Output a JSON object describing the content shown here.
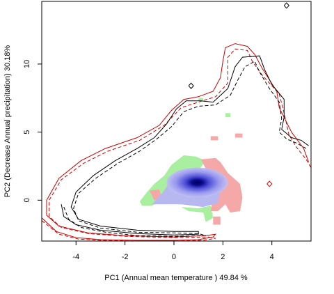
{
  "chart_data": {
    "type": "heatmap",
    "title": "",
    "xlabel": "PC1 (Annual mean temperature ) 49.84 %",
    "ylabel": "PC2 (Decrease Annual precipitation) 30.18%",
    "xlim": [
      -5.4,
      5.6
    ],
    "ylim": [
      -3.0,
      14.6
    ],
    "x_ticks": [
      -4,
      -2,
      0,
      2,
      4
    ],
    "y_ticks": [
      0,
      5,
      10
    ],
    "legend": "none",
    "grid": false,
    "colors": {
      "overlap_green": "#a8f0a0",
      "overlap_pink": "#f5a8a8",
      "density_blue": "#000060",
      "density_light": "#b8b8f0",
      "contour_red": "#cc0000",
      "contour_black": "#000000"
    },
    "overlap_regions": [
      {
        "fill": "green",
        "points": [
          [
            -1.4,
            -0.1
          ],
          [
            -1.1,
            0.6
          ],
          [
            -0.8,
            1.2
          ],
          [
            -0.4,
            1.8
          ],
          [
            -0.1,
            2.6
          ],
          [
            0.4,
            3.3
          ],
          [
            0.9,
            3.2
          ],
          [
            1.3,
            2.9
          ],
          [
            1.0,
            2.2
          ],
          [
            0.2,
            1.7
          ],
          [
            -0.3,
            0.8
          ],
          [
            -0.6,
            -0.1
          ],
          [
            -0.9,
            -0.4
          ],
          [
            -1.3,
            -0.4
          ]
        ]
      },
      {
        "fill": "green",
        "points": [
          [
            0.3,
            -0.5
          ],
          [
            1.0,
            -0.6
          ],
          [
            1.5,
            -0.4
          ],
          [
            1.6,
            -1.3
          ],
          [
            1.3,
            -1.6
          ],
          [
            1.2,
            -0.9
          ],
          [
            0.6,
            -0.8
          ]
        ]
      },
      {
        "fill": "green",
        "points": [
          [
            2.1,
            6.4
          ],
          [
            2.3,
            6.4
          ],
          [
            2.3,
            6.1
          ],
          [
            2.1,
            6.1
          ]
        ]
      },
      {
        "fill": "green",
        "points": [
          [
            1.0,
            7.5
          ],
          [
            1.2,
            7.5
          ],
          [
            1.2,
            7.3
          ],
          [
            1.0,
            7.3
          ]
        ]
      },
      {
        "fill": "pink",
        "points": [
          [
            1.1,
            3.0
          ],
          [
            1.7,
            3.1
          ],
          [
            1.9,
            2.8
          ],
          [
            2.2,
            2.0
          ],
          [
            2.7,
            1.2
          ],
          [
            2.8,
            0.2
          ],
          [
            2.7,
            -0.8
          ],
          [
            2.3,
            -0.9
          ],
          [
            2.1,
            -0.3
          ],
          [
            1.8,
            -0.8
          ],
          [
            1.5,
            -0.8
          ],
          [
            1.6,
            0.5
          ],
          [
            1.7,
            1.6
          ],
          [
            1.3,
            2.3
          ]
        ]
      },
      {
        "fill": "pink",
        "points": [
          [
            -1.0,
            0.7
          ],
          [
            -0.6,
            0.8
          ],
          [
            -0.5,
            0.1
          ],
          [
            -0.8,
            0.0
          ]
        ]
      },
      {
        "fill": "pink",
        "points": [
          [
            1.6,
            -1.2
          ],
          [
            1.9,
            -1.2
          ],
          [
            1.9,
            -1.8
          ],
          [
            1.6,
            -1.8
          ]
        ]
      },
      {
        "fill": "pink",
        "points": [
          [
            1.5,
            4.7
          ],
          [
            1.8,
            4.7
          ],
          [
            1.8,
            4.4
          ],
          [
            1.5,
            4.4
          ]
        ]
      },
      {
        "fill": "pink",
        "points": [
          [
            2.5,
            4.9
          ],
          [
            2.8,
            4.9
          ],
          [
            2.8,
            4.6
          ],
          [
            2.5,
            4.6
          ]
        ]
      }
    ],
    "density_blob": {
      "center": [
        0.95,
        1.3
      ],
      "radius_x": 1.25,
      "radius_y": 1.1,
      "outline": [
        [
          -0.9,
          -0.3
        ],
        [
          -0.4,
          0.7
        ],
        [
          0.0,
          1.9
        ],
        [
          0.9,
          2.4
        ],
        [
          1.6,
          1.9
        ],
        [
          1.9,
          0.9
        ],
        [
          1.8,
          -0.2
        ],
        [
          1.2,
          -0.5
        ],
        [
          0.3,
          -0.3
        ]
      ]
    },
    "series": [
      {
        "style": "solid",
        "color": "red",
        "points": [
          [
            -5.4,
            -1.3
          ],
          [
            -4.8,
            -2.3
          ],
          [
            -4.0,
            -2.75
          ],
          [
            -3.0,
            -2.9
          ],
          [
            -1.5,
            -2.95
          ],
          [
            0.0,
            -2.95
          ],
          [
            1.0,
            -2.9
          ],
          [
            1.6,
            -2.7
          ],
          [
            1.7,
            -2.5
          ],
          [
            1.3,
            -2.6
          ],
          [
            0.0,
            -2.7
          ],
          [
            -2.0,
            -2.6
          ],
          [
            -3.5,
            -2.4
          ],
          [
            -4.7,
            -1.9
          ],
          [
            -5.2,
            -1.1
          ],
          [
            -5.2,
            0.0
          ],
          [
            -4.7,
            1.6
          ],
          [
            -3.8,
            2.9
          ],
          [
            -2.8,
            3.8
          ],
          [
            -1.5,
            4.6
          ],
          [
            -0.6,
            5.5
          ],
          [
            -0.1,
            6.6
          ],
          [
            0.4,
            7.4
          ],
          [
            1.0,
            7.6
          ],
          [
            1.6,
            8.0
          ],
          [
            1.9,
            9.0
          ],
          [
            2.0,
            10.2
          ],
          [
            2.1,
            11.2
          ],
          [
            2.5,
            11.5
          ],
          [
            3.0,
            11.3
          ],
          [
            3.3,
            10.7
          ],
          [
            3.6,
            9.7
          ],
          [
            4.2,
            8.0
          ],
          [
            4.3,
            6.8
          ],
          [
            4.8,
            5.0
          ],
          [
            5.3,
            3.8
          ],
          [
            5.5,
            2.8
          ]
        ]
      },
      {
        "style": "dashed",
        "color": "red",
        "points": [
          [
            -5.4,
            -1.5
          ],
          [
            -4.7,
            -2.5
          ],
          [
            -3.9,
            -2.85
          ],
          [
            -3.0,
            -2.95
          ],
          [
            -1.5,
            -3.0
          ],
          [
            0.0,
            -3.0
          ],
          [
            1.2,
            -2.95
          ],
          [
            1.7,
            -2.8
          ],
          [
            1.4,
            -2.7
          ],
          [
            0.0,
            -2.75
          ],
          [
            -2.0,
            -2.65
          ],
          [
            -3.5,
            -2.45
          ],
          [
            -4.6,
            -2.0
          ],
          [
            -5.1,
            -1.2
          ],
          [
            -5.1,
            0.0
          ],
          [
            -4.6,
            1.5
          ],
          [
            -3.7,
            2.7
          ],
          [
            -2.7,
            3.6
          ],
          [
            -1.4,
            4.4
          ],
          [
            -0.4,
            5.5
          ],
          [
            0.3,
            6.8
          ],
          [
            1.0,
            7.2
          ],
          [
            1.7,
            7.6
          ],
          [
            2.2,
            8.6
          ],
          [
            2.2,
            10.5
          ],
          [
            2.5,
            11.1
          ],
          [
            3.0,
            11.0
          ],
          [
            3.2,
            10.2
          ],
          [
            3.6,
            9.2
          ],
          [
            4.3,
            7.8
          ],
          [
            4.5,
            6.4
          ],
          [
            4.7,
            4.8
          ],
          [
            5.0,
            3.9
          ],
          [
            5.4,
            3.0
          ],
          [
            5.6,
            2.4
          ]
        ]
      },
      {
        "style": "solid",
        "color": "black",
        "points": [
          [
            -4.6,
            -0.3
          ],
          [
            -4.5,
            -1.2
          ],
          [
            -4.0,
            -1.8
          ],
          [
            -3.0,
            -2.2
          ],
          [
            -1.5,
            -2.45
          ],
          [
            0.0,
            -2.55
          ],
          [
            1.0,
            -2.5
          ],
          [
            1.0,
            -2.3
          ],
          [
            0.0,
            -2.3
          ],
          [
            -1.5,
            -2.2
          ],
          [
            -3.0,
            -1.9
          ],
          [
            -3.9,
            -1.4
          ],
          [
            -4.2,
            -0.5
          ],
          [
            -4.0,
            0.6
          ],
          [
            -3.3,
            1.8
          ],
          [
            -2.4,
            2.9
          ],
          [
            -1.5,
            3.8
          ],
          [
            -0.8,
            4.6
          ],
          [
            -0.3,
            5.6
          ],
          [
            0.1,
            6.7
          ],
          [
            0.5,
            7.3
          ],
          [
            1.1,
            7.3
          ],
          [
            1.6,
            7.2
          ],
          [
            2.2,
            8.2
          ],
          [
            2.5,
            9.8
          ],
          [
            2.8,
            10.5
          ],
          [
            3.5,
            10.6
          ],
          [
            3.7,
            9.6
          ],
          [
            4.0,
            8.5
          ],
          [
            4.5,
            7.4
          ],
          [
            4.5,
            6.1
          ],
          [
            4.4,
            5.2
          ],
          [
            4.8,
            4.6
          ],
          [
            5.2,
            4.4
          ],
          [
            5.5,
            4.0
          ]
        ]
      },
      {
        "style": "dashed",
        "color": "black",
        "points": [
          [
            -4.5,
            -0.5
          ],
          [
            -4.3,
            -1.4
          ],
          [
            -3.8,
            -2.0
          ],
          [
            -2.8,
            -2.35
          ],
          [
            -1.5,
            -2.6
          ],
          [
            0.0,
            -2.65
          ],
          [
            1.3,
            -2.6
          ],
          [
            1.0,
            -2.45
          ],
          [
            0.0,
            -2.4
          ],
          [
            -1.5,
            -2.35
          ],
          [
            -3.0,
            -2.05
          ],
          [
            -3.9,
            -1.5
          ],
          [
            -4.1,
            -0.6
          ],
          [
            -3.9,
            0.5
          ],
          [
            -3.2,
            1.6
          ],
          [
            -2.3,
            2.7
          ],
          [
            -1.4,
            3.6
          ],
          [
            -0.7,
            4.5
          ],
          [
            -0.1,
            5.4
          ],
          [
            0.4,
            6.5
          ],
          [
            1.0,
            6.9
          ],
          [
            1.7,
            7.0
          ],
          [
            2.3,
            7.7
          ],
          [
            2.6,
            8.8
          ],
          [
            2.9,
            9.8
          ],
          [
            3.3,
            10.2
          ],
          [
            3.5,
            9.4
          ],
          [
            3.9,
            8.2
          ],
          [
            4.3,
            7.2
          ],
          [
            4.4,
            6.0
          ],
          [
            4.3,
            5.0
          ],
          [
            4.6,
            4.5
          ],
          [
            5.0,
            4.2
          ],
          [
            5.4,
            3.8
          ]
        ]
      },
      {
        "style": "solid",
        "color": "black",
        "points": [
          [
            4.5,
            14.3
          ],
          [
            4.6,
            14.5
          ],
          [
            4.7,
            14.3
          ],
          [
            4.6,
            14.1
          ],
          [
            4.5,
            14.3
          ]
        ]
      },
      {
        "style": "solid",
        "color": "black",
        "points": [
          [
            0.6,
            8.4
          ],
          [
            0.7,
            8.6
          ],
          [
            0.8,
            8.4
          ],
          [
            0.7,
            8.2
          ],
          [
            0.6,
            8.4
          ]
        ]
      },
      {
        "style": "solid",
        "color": "red",
        "points": [
          [
            3.8,
            1.2
          ],
          [
            3.9,
            1.4
          ],
          [
            4.0,
            1.2
          ],
          [
            3.9,
            1.0
          ],
          [
            3.8,
            1.2
          ]
        ]
      }
    ]
  }
}
